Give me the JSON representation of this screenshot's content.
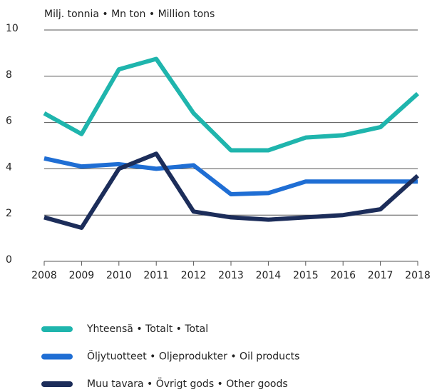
{
  "chart_data": {
    "type": "line",
    "y_label": "Milj. tonnia • Mn ton • Million tons",
    "x": [
      2008,
      2009,
      2010,
      2011,
      2012,
      2013,
      2014,
      2015,
      2016,
      2017,
      2018
    ],
    "series": [
      {
        "name": "Yhteensä • Totalt • Total",
        "color": "#1fb5ad",
        "values": [
          6.4,
          5.5,
          8.3,
          8.75,
          6.4,
          4.8,
          4.8,
          5.35,
          5.45,
          5.8,
          7.25
        ]
      },
      {
        "name": "Öljytuotteet • Oljeprodukter • Oil products",
        "color": "#1f6ed4",
        "values": [
          4.45,
          4.1,
          4.2,
          4.0,
          4.15,
          2.9,
          2.95,
          3.45,
          3.45,
          3.45,
          3.45
        ]
      },
      {
        "name": "Muu tavara • Övrigt gods • Other goods",
        "color": "#1c2d5a",
        "values": [
          1.9,
          1.45,
          4.0,
          4.65,
          2.15,
          1.9,
          1.8,
          1.9,
          2.0,
          2.25,
          3.7
        ]
      }
    ],
    "xlim": [
      2008,
      2018
    ],
    "xticks": [
      2008,
      2009,
      2010,
      2011,
      2012,
      2013,
      2014,
      2015,
      2016,
      2017,
      2018
    ],
    "ylim": [
      0,
      10
    ],
    "yticks": [
      0,
      2,
      4,
      6,
      8,
      10
    ],
    "grid": true,
    "legend": "bottom"
  }
}
